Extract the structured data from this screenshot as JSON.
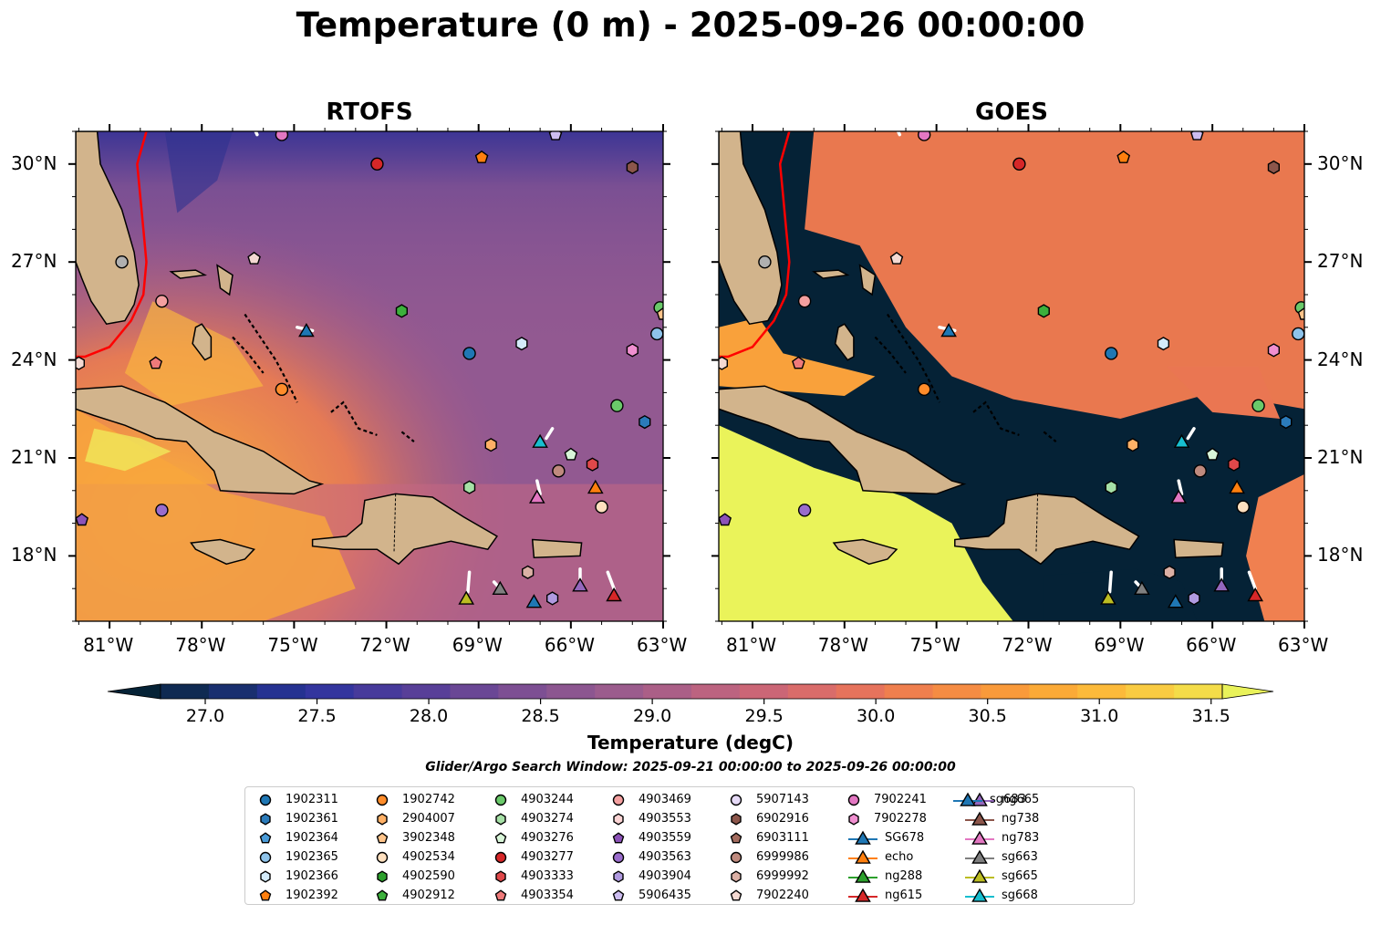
{
  "title": "Temperature (0 m) - 2025-09-26 00:00:00",
  "panels": [
    {
      "title": "RTOFS",
      "cloud": false
    },
    {
      "title": "GOES",
      "cloud": true
    }
  ],
  "lon_ticks": [
    "81°W",
    "78°W",
    "75°W",
    "72°W",
    "69°W",
    "66°W",
    "63°W"
  ],
  "lat_ticks": [
    "30°N",
    "27°N",
    "24°N",
    "21°N",
    "18°N"
  ],
  "colorbar": {
    "label": "Temperature (degC)",
    "ticks": [
      "27.0",
      "27.5",
      "28.0",
      "28.5",
      "29.0",
      "29.5",
      "30.0",
      "30.5",
      "31.0",
      "31.5"
    ],
    "colors": [
      "#052236",
      "#0f2a52",
      "#192f6f",
      "#253291",
      "#33359e",
      "#473a9b",
      "#583f98",
      "#6a4795",
      "#7d4f93",
      "#8c5690",
      "#9b5c8d",
      "#ab5f87",
      "#bc6380",
      "#cb6676",
      "#d96c6a",
      "#e6735c",
      "#ef7f4e",
      "#f58c43",
      "#f99a3a",
      "#fbaa37",
      "#fcba3a",
      "#f9cb42",
      "#f4dc49",
      "#e9f25a"
    ]
  },
  "search_window": "Glider/Argo Search Window: 2025-09-21 00:00:00 to 2025-09-26 00:00:00",
  "legend": [
    {
      "label": "1902311",
      "marker": "circle",
      "color": "#1f77b4"
    },
    {
      "label": "1902361",
      "marker": "hexagon",
      "color": "#2b7bba"
    },
    {
      "label": "1902364",
      "marker": "pentagon",
      "color": "#4a9bd8"
    },
    {
      "label": "1902365",
      "marker": "circle",
      "color": "#8ec3ea"
    },
    {
      "label": "1902366",
      "marker": "hexagon",
      "color": "#d4ebfa"
    },
    {
      "label": "1902392",
      "marker": "pentagon",
      "color": "#ff7f0e"
    },
    {
      "label": "1902742",
      "marker": "circle",
      "color": "#ff8c2a"
    },
    {
      "label": "2904007",
      "marker": "hexagon",
      "color": "#ffb066"
    },
    {
      "label": "3902348",
      "marker": "pentagon",
      "color": "#ffc48a"
    },
    {
      "label": "4902534",
      "marker": "circle",
      "color": "#ffe0bf"
    },
    {
      "label": "4902590",
      "marker": "hexagon",
      "color": "#2ca02c"
    },
    {
      "label": "4902912",
      "marker": "pentagon",
      "color": "#3cb03c"
    },
    {
      "label": "4903244",
      "marker": "circle",
      "color": "#6ac96a"
    },
    {
      "label": "4903274",
      "marker": "hexagon",
      "color": "#a6e0a6"
    },
    {
      "label": "4903276",
      "marker": "pentagon",
      "color": "#d8f5d8"
    },
    {
      "label": "4903277",
      "marker": "circle",
      "color": "#d62728"
    },
    {
      "label": "4903333",
      "marker": "hexagon",
      "color": "#e0484a"
    },
    {
      "label": "4903354",
      "marker": "pentagon",
      "color": "#ef7a7a"
    },
    {
      "label": "4903469",
      "marker": "circle",
      "color": "#f4a0a0"
    },
    {
      "label": "4903553",
      "marker": "hexagon",
      "color": "#fbd4d4"
    },
    {
      "label": "4903559",
      "marker": "pentagon",
      "color": "#8c52b8"
    },
    {
      "label": "4903563",
      "marker": "circle",
      "color": "#9a6ccc"
    },
    {
      "label": "4903904",
      "marker": "hexagon",
      "color": "#b09ae0"
    },
    {
      "label": "5906435",
      "marker": "pentagon",
      "color": "#cdbdf0"
    },
    {
      "label": "5907143",
      "marker": "circle",
      "color": "#e6daf7"
    },
    {
      "label": "6902916",
      "marker": "hexagon",
      "color": "#8c564b"
    },
    {
      "label": "6903111",
      "marker": "pentagon",
      "color": "#a36b5e"
    },
    {
      "label": "6999986",
      "marker": "circle",
      "color": "#bf8a7e"
    },
    {
      "label": "6999992",
      "marker": "hexagon",
      "color": "#dbb0a5"
    },
    {
      "label": "7902240",
      "marker": "pentagon",
      "color": "#f4d9d2"
    },
    {
      "label": "7902241",
      "marker": "circle",
      "color": "#e377c2"
    },
    {
      "label": "7902278",
      "marker": "hexagon",
      "color": "#f08fd0"
    },
    {
      "label": "SG678",
      "marker": "triangle",
      "color": "#1f77b4"
    },
    {
      "label": "echo",
      "marker": "triangle",
      "color": "#ff7f0e"
    },
    {
      "label": "ng288",
      "marker": "triangle",
      "color": "#2ca02c"
    },
    {
      "label": "ng615",
      "marker": "triangle",
      "color": "#d62728"
    },
    {
      "label": "ng665",
      "marker": "triangle",
      "color": "#9467bd"
    },
    {
      "label": "ng738",
      "marker": "triangle",
      "color": "#8c564b"
    },
    {
      "label": "ng783",
      "marker": "triangle",
      "color": "#e377c2"
    },
    {
      "label": "sg663",
      "marker": "triangle",
      "color": "#7f7f7f"
    },
    {
      "label": "sg665",
      "marker": "triangle",
      "color": "#bcbd22"
    },
    {
      "label": "sg668",
      "marker": "triangle",
      "color": "#17becf"
    },
    {
      "label": "sg683",
      "marker": "triangle",
      "color": "#1f77b4"
    }
  ],
  "observations": [
    {
      "lon": -82.0,
      "lat": 23.9,
      "marker": "hexagon",
      "color": "#f4d9d2"
    },
    {
      "lon": -81.9,
      "lat": 19.1,
      "marker": "pentagon",
      "color": "#8c52b8"
    },
    {
      "lon": -80.6,
      "lat": 27.0,
      "marker": "circle",
      "color": "#b0b0b0"
    },
    {
      "lon": -79.5,
      "lat": 23.9,
      "marker": "pentagon",
      "color": "#ef7a7a"
    },
    {
      "lon": -79.3,
      "lat": 25.8,
      "marker": "circle",
      "color": "#f4a0a0"
    },
    {
      "lon": -79.3,
      "lat": 19.4,
      "marker": "circle",
      "color": "#9a6ccc"
    },
    {
      "lon": -76.3,
      "lat": 27.1,
      "marker": "pentagon",
      "color": "#f4d9d2"
    },
    {
      "lon": -75.4,
      "lat": 23.1,
      "marker": "circle",
      "color": "#ff8c2a"
    },
    {
      "lon": -75.4,
      "lat": 30.9,
      "marker": "circle",
      "color": "#e377c2"
    },
    {
      "lon": -74.6,
      "lat": 24.9,
      "marker": "triangle",
      "color": "#1f77b4"
    },
    {
      "lon": -72.3,
      "lat": 30.0,
      "marker": "circle",
      "color": "#d62728"
    },
    {
      "lon": -71.5,
      "lat": 25.5,
      "marker": "hexagon",
      "color": "#3cb03c"
    },
    {
      "lon": -69.3,
      "lat": 24.2,
      "marker": "circle",
      "color": "#1f77b4"
    },
    {
      "lon": -69.3,
      "lat": 20.1,
      "marker": "hexagon",
      "color": "#a6e0a6"
    },
    {
      "lon": -69.4,
      "lat": 16.7,
      "marker": "triangle",
      "color": "#bcbd22"
    },
    {
      "lon": -68.9,
      "lat": 30.2,
      "marker": "pentagon",
      "color": "#ff7f0e"
    },
    {
      "lon": -68.6,
      "lat": 21.4,
      "marker": "hexagon",
      "color": "#ffb066"
    },
    {
      "lon": -68.3,
      "lat": 17.0,
      "marker": "triangle",
      "color": "#7f7f7f"
    },
    {
      "lon": -67.6,
      "lat": 24.5,
      "marker": "hexagon",
      "color": "#d4ebfa"
    },
    {
      "lon": -67.4,
      "lat": 17.5,
      "marker": "hexagon",
      "color": "#dbb0a5"
    },
    {
      "lon": -67.2,
      "lat": 16.6,
      "marker": "triangle",
      "color": "#1f77b4"
    },
    {
      "lon": -67.0,
      "lat": 21.5,
      "marker": "triangle",
      "color": "#17becf"
    },
    {
      "lon": -67.1,
      "lat": 19.8,
      "marker": "triangle",
      "color": "#e377c2"
    },
    {
      "lon": -66.6,
      "lat": 16.7,
      "marker": "hexagon",
      "color": "#b09ae0"
    },
    {
      "lon": -66.5,
      "lat": 30.9,
      "marker": "pentagon",
      "color": "#cdbdf0"
    },
    {
      "lon": -66.4,
      "lat": 20.6,
      "marker": "circle",
      "color": "#bf8a7e"
    },
    {
      "lon": -66.0,
      "lat": 21.1,
      "marker": "pentagon",
      "color": "#d8f5d8"
    },
    {
      "lon": -65.7,
      "lat": 17.1,
      "marker": "triangle",
      "color": "#9467bd"
    },
    {
      "lon": -65.3,
      "lat": 20.8,
      "marker": "hexagon",
      "color": "#e0484a"
    },
    {
      "lon": -65.2,
      "lat": 20.1,
      "marker": "triangle",
      "color": "#ff7f0e"
    },
    {
      "lon": -65.0,
      "lat": 19.5,
      "marker": "circle",
      "color": "#ffe0bf"
    },
    {
      "lon": -64.6,
      "lat": 16.8,
      "marker": "triangle",
      "color": "#d62728"
    },
    {
      "lon": -64.5,
      "lat": 22.6,
      "marker": "circle",
      "color": "#6ac96a"
    },
    {
      "lon": -64.0,
      "lat": 24.3,
      "marker": "hexagon",
      "color": "#f08fd0"
    },
    {
      "lon": -64.0,
      "lat": 29.9,
      "marker": "hexagon",
      "color": "#8c564b"
    },
    {
      "lon": -63.6,
      "lat": 22.1,
      "marker": "hexagon",
      "color": "#2b7bba"
    },
    {
      "lon": -63.2,
      "lat": 24.8,
      "marker": "circle",
      "color": "#8ec3ea"
    },
    {
      "lon": -63.1,
      "lat": 25.6,
      "marker": "circle",
      "color": "#6ac96a"
    },
    {
      "lon": -63.0,
      "lat": 25.4,
      "marker": "pentagon",
      "color": "#ffc48a"
    }
  ],
  "gulf_stream": [
    [
      -79.8,
      31.0
    ],
    [
      -80.1,
      30.0
    ],
    [
      -80.0,
      29.0
    ],
    [
      -79.9,
      28.0
    ],
    [
      -79.8,
      27.0
    ],
    [
      -79.9,
      26.0
    ],
    [
      -80.3,
      25.2
    ],
    [
      -81.0,
      24.4
    ],
    [
      -81.8,
      24.1
    ],
    [
      -82.1,
      24.1
    ]
  ],
  "glider_tracks": [
    [
      [
        -76.3,
        31.1
      ],
      [
        -76.2,
        30.9
      ]
    ],
    [
      [
        -74.9,
        25.0
      ],
      [
        -74.4,
        24.9
      ]
    ],
    [
      [
        -69.3,
        17.5
      ],
      [
        -69.35,
        16.9
      ]
    ],
    [
      [
        -68.5,
        17.2
      ],
      [
        -68.3,
        17.0
      ]
    ],
    [
      [
        -67.1,
        20.3
      ],
      [
        -67.0,
        19.9
      ]
    ],
    [
      [
        -66.8,
        21.6
      ],
      [
        -66.6,
        21.9
      ]
    ],
    [
      [
        -65.7,
        17.6
      ],
      [
        -65.7,
        17.1
      ]
    ],
    [
      [
        -64.8,
        17.5
      ],
      [
        -64.6,
        17.0
      ]
    ]
  ]
}
